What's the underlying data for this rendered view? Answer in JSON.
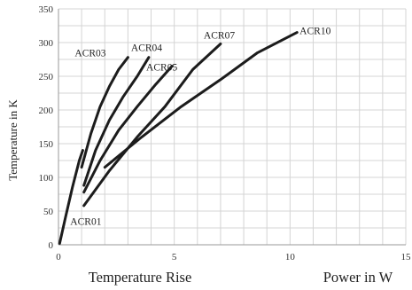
{
  "chart_data": {
    "type": "line",
    "ylabel": "Temperature in K",
    "xlabel_left": "Temperature Rise",
    "xlabel_right": "Power in W",
    "xlim": [
      0,
      15
    ],
    "ylim": [
      0,
      350
    ],
    "xticks": [
      0,
      5,
      10,
      15
    ],
    "yticks": [
      0,
      50,
      100,
      150,
      200,
      250,
      300,
      350
    ],
    "grid": true,
    "series": [
      {
        "name": "ACR01",
        "x": [
          0.05,
          0.3,
          0.6,
          0.9,
          1.05
        ],
        "y": [
          2,
          40,
          85,
          125,
          140
        ]
      },
      {
        "name": "ACR03",
        "x": [
          1.0,
          1.4,
          1.8,
          2.2,
          2.6,
          3.0
        ],
        "y": [
          115,
          165,
          205,
          235,
          260,
          278
        ]
      },
      {
        "name": "ACR04",
        "x": [
          1.1,
          1.6,
          2.2,
          2.8,
          3.4,
          3.9
        ],
        "y": [
          88,
          140,
          185,
          220,
          250,
          278
        ]
      },
      {
        "name": "ACR05",
        "x": [
          1.1,
          1.8,
          2.6,
          3.4,
          4.2,
          4.9
        ],
        "y": [
          78,
          125,
          170,
          205,
          238,
          265
        ]
      },
      {
        "name": "ACR07",
        "x": [
          1.1,
          2.2,
          3.4,
          4.6,
          5.8,
          7.0
        ],
        "y": [
          58,
          110,
          160,
          205,
          260,
          298
        ]
      },
      {
        "name": "ACR10",
        "x": [
          2.0,
          3.6,
          5.3,
          7.0,
          8.6,
          10.3
        ],
        "y": [
          115,
          160,
          205,
          245,
          285,
          315
        ]
      }
    ]
  }
}
